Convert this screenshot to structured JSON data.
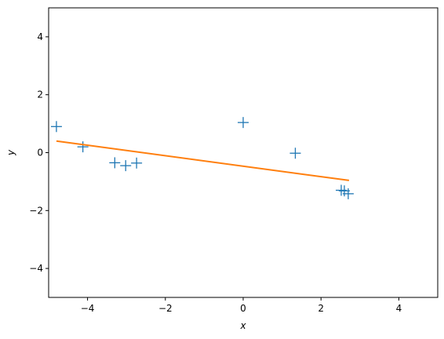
{
  "chart_data": {
    "type": "scatter",
    "title": "",
    "xlabel": "x",
    "ylabel": "y",
    "xlim": [
      -5,
      5
    ],
    "ylim": [
      -5,
      5
    ],
    "xticks": [
      -4,
      -2,
      0,
      2,
      4
    ],
    "xtick_labels": [
      "−4",
      "−2",
      "0",
      "2",
      "4"
    ],
    "yticks": [
      -4,
      -2,
      0,
      2,
      4
    ],
    "ytick_labels": [
      "−4",
      "−2",
      "0",
      "2",
      "4"
    ],
    "grid": false,
    "series": [
      {
        "kind": "scatter",
        "marker": "+",
        "color": "#1f77b4",
        "x": [
          -4.8,
          -4.12,
          -3.3,
          -3.02,
          -2.74,
          0.0,
          1.34,
          2.52,
          2.6,
          2.7
        ],
        "y": [
          0.9,
          0.2,
          -0.35,
          -0.45,
          -0.36,
          1.04,
          -0.02,
          -1.3,
          -1.32,
          -1.42
        ]
      },
      {
        "kind": "line",
        "color": "#ff7f0e",
        "x": [
          -4.8,
          2.72
        ],
        "y": [
          0.4,
          -0.96
        ]
      }
    ]
  }
}
